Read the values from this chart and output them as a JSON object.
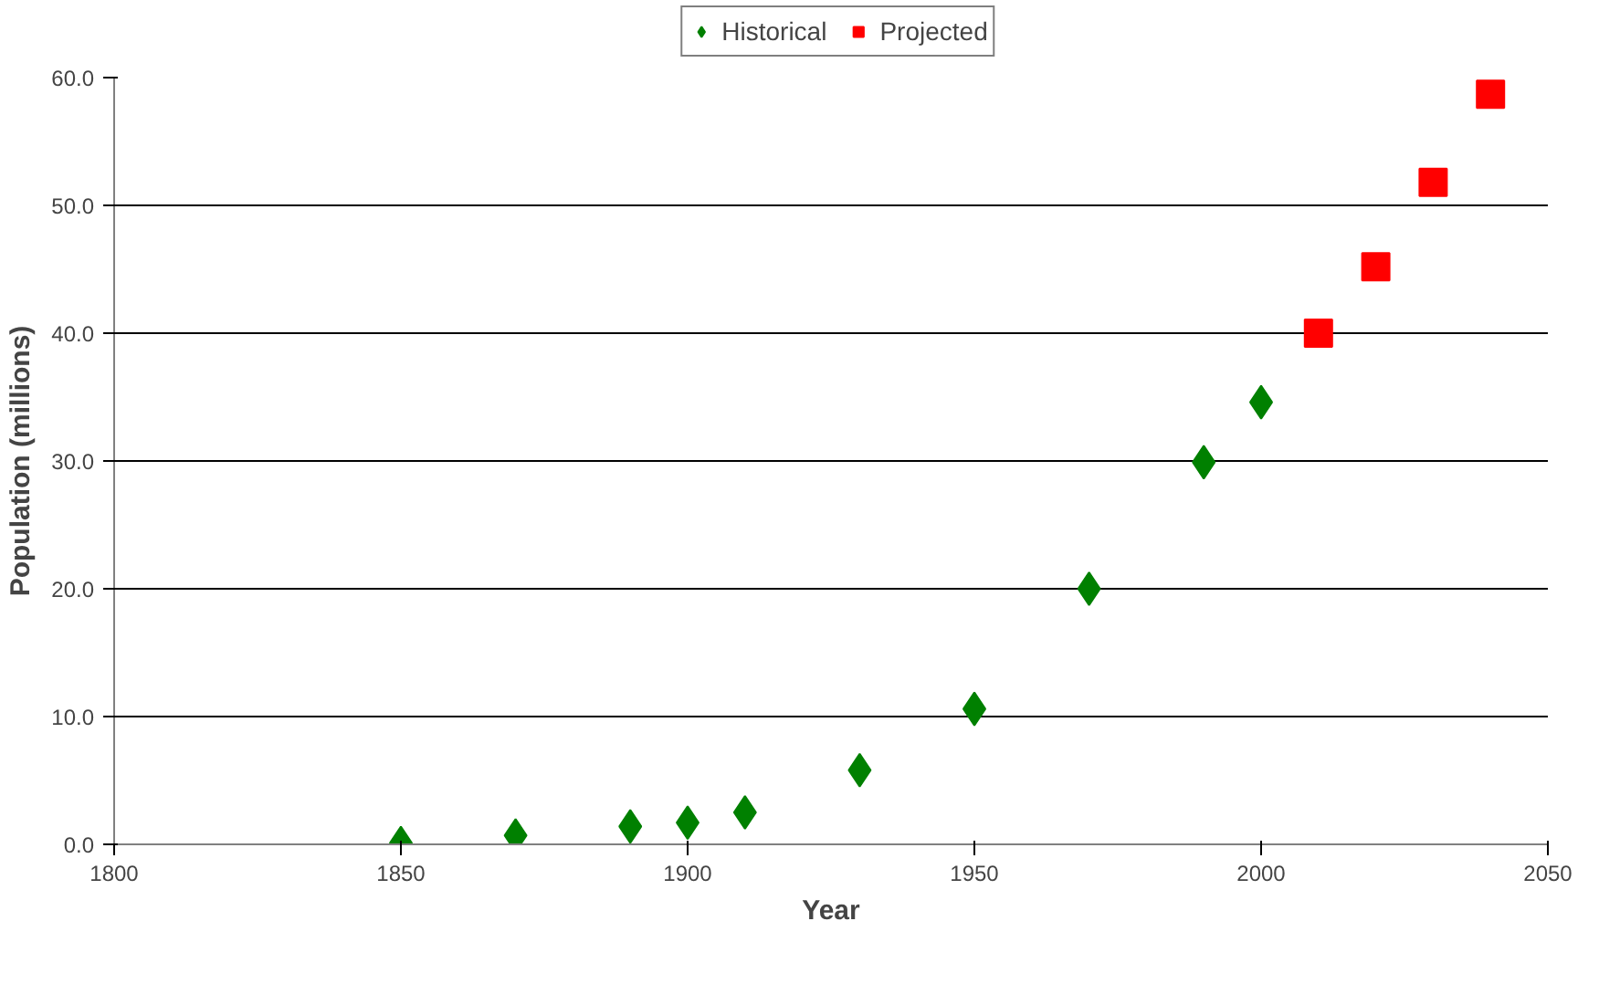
{
  "chart_data": {
    "type": "scatter",
    "xlabel": "Year",
    "ylabel": "Population (millions)",
    "xlim": [
      1800,
      2050
    ],
    "xticks": [
      1800,
      1850,
      1900,
      1950,
      2000,
      2050
    ],
    "ylim": [
      0,
      60
    ],
    "yticks": [
      {
        "value": 0,
        "label": "0.0"
      },
      {
        "value": 10,
        "label": "10.0"
      },
      {
        "value": 20,
        "label": "20.0"
      },
      {
        "value": 30,
        "label": "30.0"
      },
      {
        "value": 40,
        "label": "40.0"
      },
      {
        "value": 50,
        "label": "50.0"
      },
      {
        "value": 60,
        "label": "60.0"
      }
    ],
    "grid": "y",
    "legend": "top",
    "series": [
      {
        "name": "Historical",
        "color": "#008000",
        "marker": "diamond",
        "x": [
          1850,
          1870,
          1890,
          1900,
          1910,
          1930,
          1950,
          1970,
          1990,
          2000
        ],
        "values": [
          0.1,
          0.7,
          1.4,
          1.7,
          2.5,
          5.8,
          10.6,
          20.0,
          29.9,
          34.6
        ]
      },
      {
        "name": "Projected",
        "color": "#ff0000",
        "marker": "square",
        "x": [
          2010,
          2020,
          2030,
          2040
        ],
        "values": [
          40.0,
          45.2,
          51.8,
          58.7
        ]
      }
    ]
  }
}
